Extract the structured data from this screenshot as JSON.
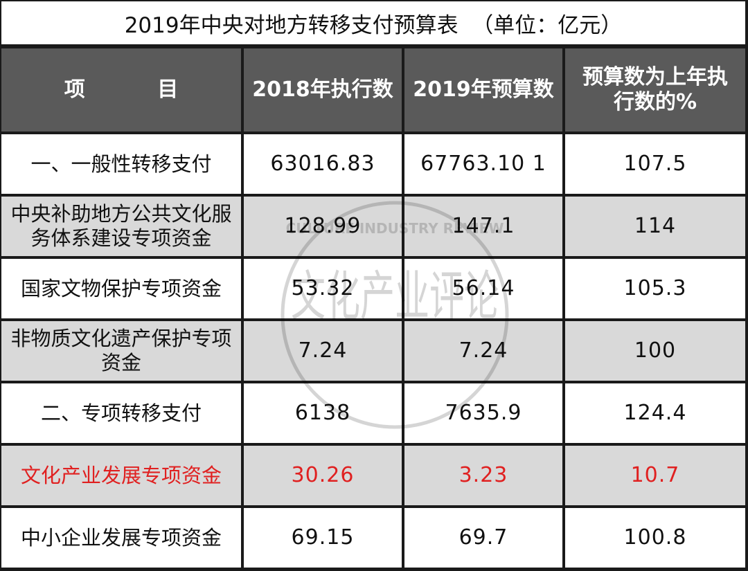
{
  "title": "2019年中央对地方转移支付预算表  （单位：亿元）",
  "headers": [
    "项          目",
    "2018年执行数",
    "2019年预算数",
    "预算数为上年执行数的%"
  ],
  "rows": [
    {
      "item": "一、一般性转移支付",
      "v2018": "63016.83",
      "v2019": "67763.10 1",
      "pct": "107.5"
    },
    {
      "item": "中央补助地方公共文化服务体系建设专项资金",
      "v2018": "128.99",
      "v2019": "147.1",
      "pct": "114"
    },
    {
      "item": "国家文物保护专项资金",
      "v2018": "53.32",
      "v2019": "56.14",
      "pct": "105.3"
    },
    {
      "item": "非物质文化遗产保护专项资金",
      "v2018": "7.24",
      "v2019": "7.24",
      "pct": "100"
    },
    {
      "item": "二、专项转移支付",
      "v2018": "6138",
      "v2019": "7635.9",
      "pct": "124.4"
    },
    {
      "item": "文化产业发展专项资金",
      "v2018": "30.26",
      "v2019": "3.23",
      "pct": "10.7"
    },
    {
      "item": "中小企业发展专项资金",
      "v2018": "69.15",
      "v2019": "69.7",
      "pct": "100.8"
    }
  ],
  "colors": {
    "header_bg": "#5a5a5a",
    "row_white": "#ffffff",
    "row_gray": "#d9d9d9",
    "grid": "#1a1a1a",
    "highlight": "#e02020"
  },
  "watermark": {
    "text_en": "CULTURE INDUSTRY REVIEW",
    "text_cn": "文化产业评论"
  }
}
